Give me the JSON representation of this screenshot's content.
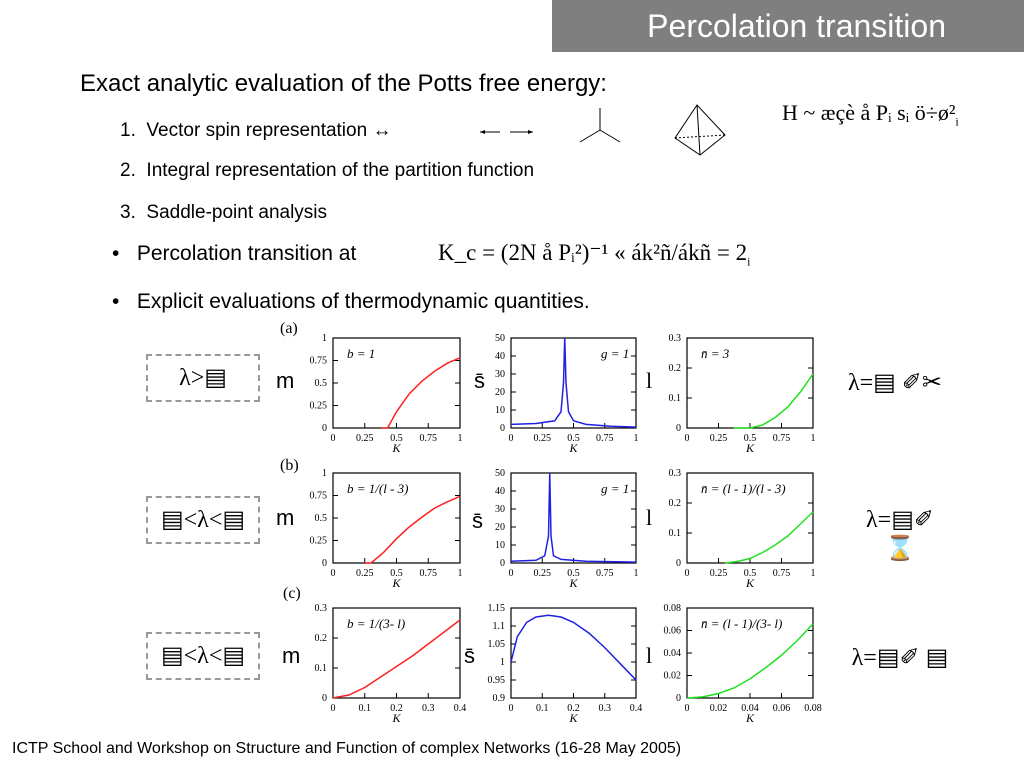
{
  "title": "Percolation transition",
  "heading": "Exact analytic evaluation of the Potts free energy:",
  "numbered": [
    {
      "n": "1.",
      "text": "Vector spin representation ↔"
    },
    {
      "n": "2.",
      "text": "Integral representation of the partition function"
    },
    {
      "n": "3.",
      "text": "Saddle-point analysis"
    }
  ],
  "hamiltonian": "H ~ æçè å Pᵢ sᵢ ö÷ø²",
  "hamiltonian_sub": "i",
  "bullets": [
    {
      "text": "Percolation transition at",
      "formula": "K_c = (2N å Pᵢ²)⁻¹ « ák²ñ/ákñ = 2",
      "formula_sub": "i"
    },
    {
      "text": "Explicit evaluations of thermodynamic quantities."
    }
  ],
  "rows": [
    {
      "label": "(a)",
      "condition": "λ>▤",
      "ylabels": [
        "m",
        "s̄",
        "l"
      ],
      "annotations": [
        "b = 1",
        "g = 1",
        "n̄ = 3"
      ],
      "result": "λ=▤ ✐✂"
    },
    {
      "label": "(b)",
      "condition": "▤<λ<▤",
      "ylabels": [
        "m",
        "s̄",
        "l"
      ],
      "annotations": [
        "b = 1/(l - 3)",
        "g = 1",
        "n̄ = (l - 1)/(l - 3)"
      ],
      "result": "λ=▤✐ ⌛"
    },
    {
      "label": "(c)",
      "condition": "▤<λ<▤",
      "ylabels": [
        "m",
        "s̄",
        "l"
      ],
      "annotations": [
        "b = 1/(3- l)",
        "",
        "n̄ = (l - 1)/(3- l)"
      ],
      "result": "λ=▤✐ ▤"
    }
  ],
  "xlabel": "K",
  "footer": "ICTP School and Workshop on Structure and Function of complex Networks (16-28 May 2005)",
  "chart_data": [
    {
      "type": "line",
      "row": "a",
      "ylabel": "m",
      "xlim": [
        0,
        1
      ],
      "ylim": [
        0,
        1
      ],
      "xticks": [
        "0",
        "0.25",
        "0.5",
        "0.75",
        "1"
      ],
      "yticks": [
        "0",
        "0.25",
        "0.5",
        "0.75",
        "1"
      ],
      "color": "#ff2020",
      "x": [
        0.38,
        0.43,
        0.5,
        0.6,
        0.7,
        0.8,
        0.9,
        1.0
      ],
      "y": [
        0,
        0,
        0.18,
        0.38,
        0.52,
        0.63,
        0.72,
        0.78
      ]
    },
    {
      "type": "line",
      "row": "a",
      "ylabel": "s",
      "xlim": [
        0,
        1
      ],
      "ylim": [
        0,
        50
      ],
      "xticks": [
        "0",
        "0.25",
        "0.5",
        "0.75",
        "1"
      ],
      "yticks": [
        "0",
        "10",
        "20",
        "30",
        "40",
        "50"
      ],
      "color": "#2020e0",
      "x": [
        0,
        0.2,
        0.35,
        0.4,
        0.42,
        0.43,
        0.44,
        0.46,
        0.5,
        0.6,
        0.8,
        1.0
      ],
      "y": [
        2,
        2.5,
        4,
        9,
        25,
        50,
        25,
        9,
        4,
        2,
        1,
        0.5
      ]
    },
    {
      "type": "line",
      "row": "a",
      "ylabel": "l",
      "xlim": [
        0,
        1
      ],
      "ylim": [
        0,
        0.3
      ],
      "xticks": [
        "0",
        "0.25",
        "0.5",
        "0.75",
        "1"
      ],
      "yticks": [
        "0",
        "0.1",
        "0.2",
        "0.3"
      ],
      "color": "#20e020",
      "x": [
        0.37,
        0.5,
        0.6,
        0.7,
        0.8,
        0.9,
        1.0
      ],
      "y": [
        0,
        0,
        0.01,
        0.035,
        0.07,
        0.12,
        0.18
      ]
    },
    {
      "type": "line",
      "row": "b",
      "ylabel": "m",
      "xlim": [
        0,
        1
      ],
      "ylim": [
        0,
        1
      ],
      "xticks": [
        "0",
        "0.25",
        "0.5",
        "0.75",
        "1"
      ],
      "yticks": [
        "0",
        "0.25",
        "0.5",
        "0.75",
        "1"
      ],
      "color": "#ff2020",
      "x": [
        0.25,
        0.3,
        0.4,
        0.5,
        0.6,
        0.7,
        0.8,
        0.9,
        1.0
      ],
      "y": [
        0,
        0,
        0.12,
        0.27,
        0.4,
        0.51,
        0.61,
        0.68,
        0.74
      ]
    },
    {
      "type": "line",
      "row": "b",
      "ylabel": "s",
      "xlim": [
        0,
        1
      ],
      "ylim": [
        0,
        50
      ],
      "xticks": [
        "0",
        "0.25",
        "0.5",
        "0.75",
        "1"
      ],
      "yticks": [
        "0",
        "10",
        "20",
        "30",
        "40",
        "50"
      ],
      "color": "#2020e0",
      "x": [
        0,
        0.2,
        0.27,
        0.3,
        0.31,
        0.32,
        0.34,
        0.4,
        0.6,
        1.0
      ],
      "y": [
        1,
        1.5,
        4,
        15,
        50,
        15,
        4,
        2,
        1,
        0.5
      ]
    },
    {
      "type": "line",
      "row": "b",
      "ylabel": "l",
      "xlim": [
        0,
        1
      ],
      "ylim": [
        0,
        0.3
      ],
      "xticks": [
        "0",
        "0.25",
        "0.5",
        "0.75",
        "1"
      ],
      "yticks": [
        "0",
        "0.1",
        "0.2",
        "0.3"
      ],
      "color": "#20e020",
      "x": [
        0.3,
        0.4,
        0.5,
        0.6,
        0.7,
        0.8,
        0.9,
        1.0
      ],
      "y": [
        0,
        0.005,
        0.015,
        0.035,
        0.06,
        0.09,
        0.13,
        0.17
      ]
    },
    {
      "type": "line",
      "row": "c",
      "ylabel": "m",
      "xlim": [
        0,
        0.4
      ],
      "ylim": [
        0,
        0.3
      ],
      "xticks": [
        "0",
        "0.1",
        "0.2",
        "0.3",
        "0.4"
      ],
      "yticks": [
        "0",
        "0.1",
        "0.2",
        "0.3"
      ],
      "color": "#ff2020",
      "x": [
        0,
        0.05,
        0.1,
        0.15,
        0.2,
        0.25,
        0.3,
        0.35,
        0.4
      ],
      "y": [
        0,
        0.01,
        0.035,
        0.07,
        0.105,
        0.14,
        0.18,
        0.22,
        0.26
      ]
    },
    {
      "type": "line",
      "row": "c",
      "ylabel": "s",
      "xlim": [
        0,
        0.4
      ],
      "ylim": [
        0.9,
        1.15
      ],
      "xticks": [
        "0",
        "0.1",
        "0.2",
        "0.3",
        "0.4"
      ],
      "yticks": [
        "0.9",
        "0.95",
        "1",
        "1.05",
        "1.1",
        "1.15"
      ],
      "color": "#2020e0",
      "x": [
        0,
        0.02,
        0.05,
        0.08,
        0.12,
        0.16,
        0.2,
        0.25,
        0.3,
        0.35,
        0.4
      ],
      "y": [
        1.0,
        1.07,
        1.11,
        1.125,
        1.13,
        1.125,
        1.11,
        1.08,
        1.04,
        0.995,
        0.95
      ]
    },
    {
      "type": "line",
      "row": "c",
      "ylabel": "l",
      "xlim": [
        0,
        0.4
      ],
      "ylim": [
        0,
        0.08
      ],
      "xticks": [
        "0",
        "0.02",
        "0.04",
        "0.06",
        "0.08"
      ],
      "ytick_override": true,
      "color": "#20e020",
      "x": [
        0,
        0.05,
        0.1,
        0.15,
        0.2,
        0.25,
        0.3,
        0.35,
        0.4
      ],
      "y": [
        0,
        0.001,
        0.004,
        0.009,
        0.017,
        0.027,
        0.038,
        0.051,
        0.066
      ]
    }
  ]
}
